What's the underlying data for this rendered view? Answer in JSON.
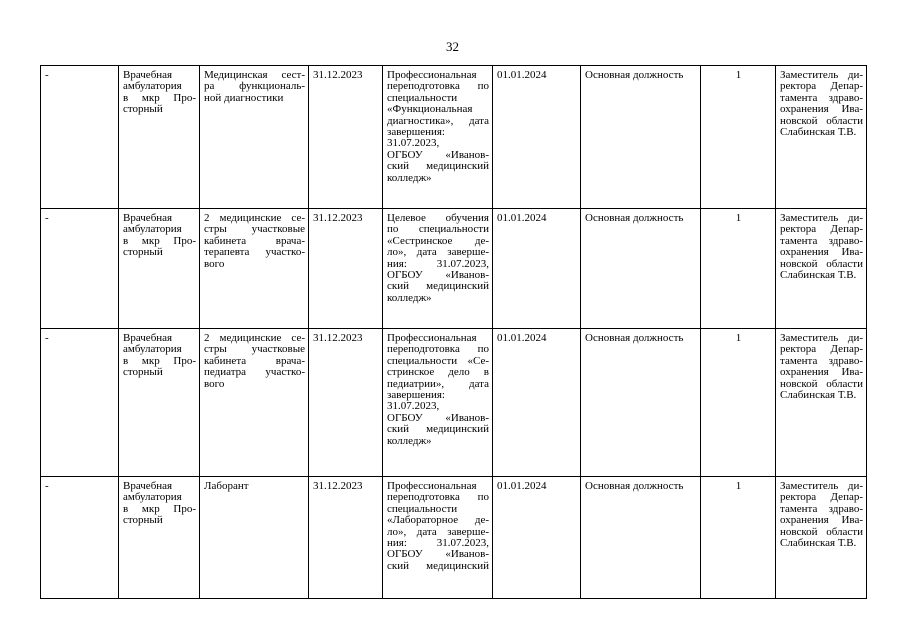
{
  "page_number": "32",
  "rows": [
    {
      "cells": [
        [
          "-"
        ],
        [
          "Врачебная",
          "амбулатория",
          "в мкр Про-",
          "сторный"
        ],
        [
          "Медицинская сест-",
          "ра функциональ-",
          "ной диагностики"
        ],
        [
          "31.12.2023"
        ],
        [
          "Профессиональная",
          "переподготовка по",
          "специальности",
          "«Функциональная",
          "диагностика», дата",
          "завершения:",
          "31.07.2023,",
          "ОГБОУ «Иванов-",
          "ский медицинский",
          "колледж»"
        ],
        [
          "01.01.2024"
        ],
        [
          "Основная должность"
        ],
        [
          "1"
        ],
        [
          "Заместитель ди-",
          "ректора Депар-",
          "тамента здраво-",
          "охранения Ива-",
          "новской области",
          "Слабинская Т.В."
        ]
      ]
    },
    {
      "cells": [
        [
          "-"
        ],
        [
          "Врачебная",
          "амбулатория",
          "в мкр Про-",
          "сторный"
        ],
        [
          "2 медицинские се-",
          "стры участковые",
          "кабинета врача-",
          "терапевта участко-",
          "вого"
        ],
        [
          "31.12.2023"
        ],
        [
          "Целевое обучения",
          "по специальности",
          "«Сестринское де-",
          "ло», дата заверше-",
          "ния: 31.07.2023,",
          "ОГБОУ «Иванов-",
          "ский медицинский",
          "колледж»"
        ],
        [
          "01.01.2024"
        ],
        [
          "Основная должность"
        ],
        [
          "1"
        ],
        [
          "Заместитель ди-",
          "ректора Депар-",
          "тамента здраво-",
          "охранения Ива-",
          "новской области",
          "Слабинская Т.В."
        ]
      ]
    },
    {
      "cells": [
        [
          "-"
        ],
        [
          "Врачебная",
          "амбулатория",
          "в мкр Про-",
          "сторный"
        ],
        [
          "2 медицинские се-",
          "стры участковые",
          "кабинета врача-",
          "педиатра участко-",
          "вого"
        ],
        [
          "31.12.2023"
        ],
        [
          "Профессиональная",
          "переподготовка по",
          "специальности «Се-",
          "стринское дело в",
          "педиатрии», дата",
          "завершения:",
          "31.07.2023,",
          "ОГБОУ «Иванов-",
          "ский медицинский",
          "колледж»"
        ],
        [
          "01.01.2024"
        ],
        [
          "Основная должность"
        ],
        [
          "1"
        ],
        [
          "Заместитель ди-",
          "ректора Депар-",
          "тамента здраво-",
          "охранения Ива-",
          "новской области",
          "Слабинская Т.В."
        ]
      ]
    },
    {
      "cells": [
        [
          "-"
        ],
        [
          "Врачебная",
          "амбулатория",
          "в мкр Про-",
          "сторный"
        ],
        [
          "Лаборант"
        ],
        [
          "31.12.2023"
        ],
        [
          "Профессиональная",
          "переподготовка по",
          "специальности",
          "«Лабораторное де-",
          "ло», дата заверше-",
          "ния: 31.07.2023,",
          "ОГБОУ «Иванов-",
          "ский медицинский"
        ],
        [
          "01.01.2024"
        ],
        [
          "Основная должность"
        ],
        [
          "1"
        ],
        [
          "Заместитель ди-",
          "ректора Депар-",
          "тамента здраво-",
          "охранения Ива-",
          "новской области",
          "Слабинская Т.В."
        ]
      ]
    }
  ]
}
